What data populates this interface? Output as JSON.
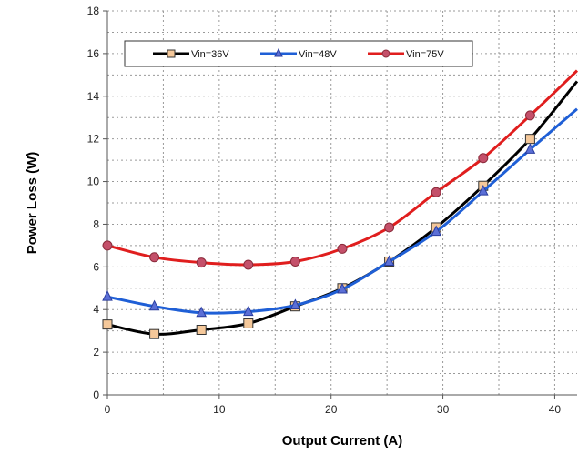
{
  "chart_data": {
    "type": "line",
    "title": "",
    "xlabel": "Output Current (A)",
    "ylabel": "Power Loss  (W)",
    "xlim": [
      0,
      42
    ],
    "ylim": [
      0,
      18
    ],
    "x_ticks": [
      "0",
      "10",
      "20",
      "30",
      "40"
    ],
    "y_ticks": [
      "0",
      "2",
      "4",
      "6",
      "8",
      "10",
      "12",
      "14",
      "16",
      "18"
    ],
    "grid": true,
    "legend_position": "top-left",
    "series": [
      {
        "name": "Vin=36V",
        "color": "#000000",
        "marker": "square",
        "marker_color": "#f5c89a",
        "x": [
          0,
          4.2,
          8.4,
          12.6,
          16.8,
          21,
          25.2,
          29.4,
          33.6,
          37.8
        ],
        "y": [
          3.3,
          2.85,
          3.05,
          3.35,
          4.15,
          5.0,
          6.25,
          7.85,
          9.8,
          12.0
        ],
        "curve_end": [
          42,
          14.7
        ]
      },
      {
        "name": "Vin=48V",
        "color": "#1f5fd6",
        "marker": "triangle",
        "marker_color": "#5b6fd6",
        "x": [
          0,
          4.2,
          8.4,
          12.6,
          16.8,
          21,
          25.2,
          29.4,
          33.6,
          37.8
        ],
        "y": [
          4.6,
          4.15,
          3.85,
          3.9,
          4.2,
          4.95,
          6.25,
          7.65,
          9.55,
          11.5
        ],
        "curve_end": [
          42,
          13.4
        ]
      },
      {
        "name": "Vin=75V",
        "color": "#e01e1e",
        "marker": "circle",
        "marker_color": "#c4506a",
        "x": [
          0,
          4.2,
          8.4,
          12.6,
          16.8,
          21,
          25.2,
          29.4,
          33.6,
          37.8
        ],
        "y": [
          7.0,
          6.45,
          6.2,
          6.1,
          6.25,
          6.85,
          7.85,
          9.5,
          11.1,
          13.1
        ],
        "curve_end": [
          42,
          15.2
        ]
      }
    ]
  }
}
